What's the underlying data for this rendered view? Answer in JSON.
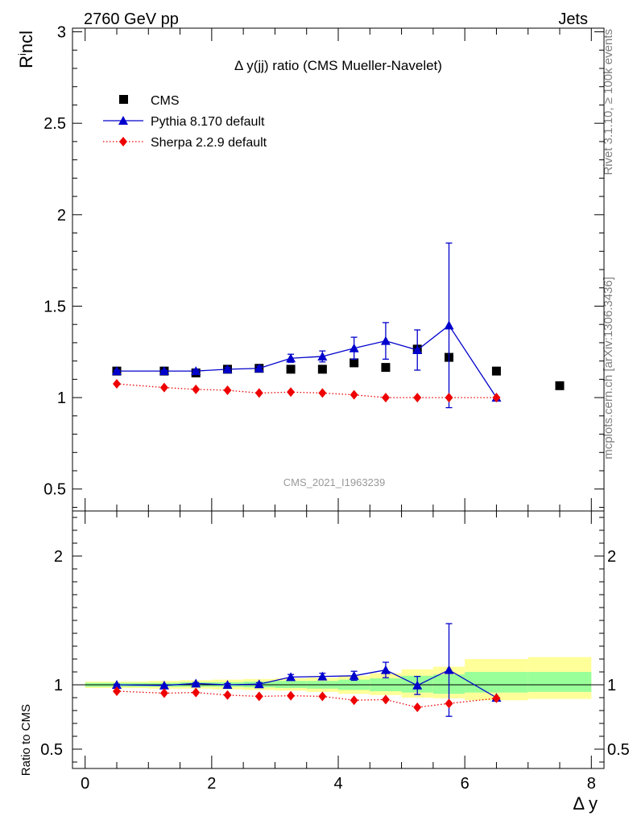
{
  "header": {
    "left": "2760 GeV pp",
    "right": "Jets",
    "side_top": "Rivet 3.1.10, ≥ 100k events",
    "side_bottom": "mcplots.cern.ch [arXiv:1306.3436]"
  },
  "chart_data": [
    {
      "type": "scatter",
      "panel": "main",
      "title": "Δ y(jj) ratio (CMS Mueller-Navelet)",
      "watermark": "CMS_2021_I1963239",
      "ylabel": "R^incl",
      "xlim": [
        -0.2,
        8.2
      ],
      "ylim": [
        0.38,
        3.02
      ],
      "y_ticks": [
        0.5,
        1,
        1.5,
        2,
        2.5,
        3
      ],
      "y_tick_labels": [
        "0.5",
        "1",
        "1.5",
        "2",
        "2.5",
        "3"
      ],
      "legend_position": "top-left",
      "series": [
        {
          "name": "CMS",
          "color": "#000000",
          "marker": "square",
          "x": [
            0.5,
            1.25,
            1.75,
            2.25,
            2.75,
            3.25,
            3.75,
            4.25,
            4.75,
            5.25,
            5.75,
            6.5,
            7.5
          ],
          "y": [
            1.145,
            1.145,
            1.135,
            1.155,
            1.16,
            1.155,
            1.155,
            1.19,
            1.165,
            1.265,
            1.22,
            1.145,
            1.065
          ]
        },
        {
          "name": "Pythia 8.170 default",
          "color": "#0000cc",
          "marker": "triangle",
          "line": "solid",
          "x": [
            0.5,
            1.25,
            1.75,
            2.25,
            2.75,
            3.25,
            3.75,
            4.25,
            4.75,
            5.25,
            5.75,
            6.5
          ],
          "y": [
            1.145,
            1.145,
            1.145,
            1.155,
            1.16,
            1.215,
            1.225,
            1.27,
            1.31,
            1.26,
            1.395,
            1.0
          ],
          "err": [
            0.005,
            0.005,
            0.008,
            0.01,
            0.012,
            0.022,
            0.03,
            0.06,
            0.1,
            0.11,
            0.45,
            0.0
          ]
        },
        {
          "name": "Sherpa 2.2.9 default",
          "color": "#ee0000",
          "marker": "diamond",
          "line": "dotted",
          "x": [
            0.5,
            1.25,
            1.75,
            2.25,
            2.75,
            3.25,
            3.75,
            4.25,
            4.75,
            5.25,
            5.75,
            6.5
          ],
          "y": [
            1.075,
            1.055,
            1.045,
            1.04,
            1.025,
            1.03,
            1.025,
            1.015,
            1.0,
            1.0,
            1.0,
            1.0
          ]
        }
      ]
    },
    {
      "type": "scatter",
      "panel": "ratio",
      "ylabel": "Ratio to CMS",
      "xlabel": "Δ y",
      "xlim": [
        -0.2,
        8.2
      ],
      "ylim": [
        0.35,
        2.35
      ],
      "x_ticks": [
        0,
        2,
        4,
        6,
        8
      ],
      "x_tick_labels": [
        "0",
        "2",
        "4",
        "6",
        "8"
      ],
      "y_ticks": [
        0.5,
        1,
        2
      ],
      "y_tick_labels": [
        "0.5",
        "1",
        "2"
      ],
      "reference_line": 1,
      "bands": {
        "edges": [
          0,
          1,
          1.5,
          2,
          2.5,
          3,
          3.5,
          4,
          4.5,
          5,
          5.5,
          6,
          7,
          8
        ],
        "inner": [
          [
            0.985,
            1.015
          ],
          [
            0.985,
            1.015
          ],
          [
            0.985,
            1.02
          ],
          [
            0.985,
            1.02
          ],
          [
            0.98,
            1.025
          ],
          [
            0.975,
            1.03
          ],
          [
            0.97,
            1.03
          ],
          [
            0.96,
            1.04
          ],
          [
            0.95,
            1.05
          ],
          [
            0.94,
            1.07
          ],
          [
            0.93,
            1.08
          ],
          [
            0.94,
            1.1
          ],
          [
            0.945,
            1.1
          ]
        ],
        "outer": [
          [
            0.975,
            1.025
          ],
          [
            0.97,
            1.03
          ],
          [
            0.97,
            1.035
          ],
          [
            0.965,
            1.04
          ],
          [
            0.96,
            1.045
          ],
          [
            0.955,
            1.05
          ],
          [
            0.945,
            1.055
          ],
          [
            0.93,
            1.07
          ],
          [
            0.92,
            1.09
          ],
          [
            0.9,
            1.12
          ],
          [
            0.895,
            1.14
          ],
          [
            0.88,
            1.2
          ],
          [
            0.89,
            1.215
          ]
        ]
      },
      "series": [
        {
          "name": "Pythia 8.170 default",
          "color": "#0000cc",
          "marker": "triangle",
          "line": "solid",
          "x": [
            0.5,
            1.25,
            1.75,
            2.25,
            2.75,
            3.25,
            3.75,
            4.25,
            4.75,
            5.25,
            5.75,
            6.5
          ],
          "y": [
            1.0,
            0.995,
            1.01,
            1.0,
            1.005,
            1.06,
            1.065,
            1.07,
            1.115,
            0.995,
            1.115,
            0.9
          ],
          "err": [
            0.005,
            0.005,
            0.008,
            0.01,
            0.012,
            0.02,
            0.025,
            0.035,
            0.06,
            0.07,
            0.36,
            0.0
          ]
        },
        {
          "name": "Sherpa 2.2.9 default",
          "color": "#ee0000",
          "marker": "diamond",
          "line": "dotted",
          "x": [
            0.5,
            1.25,
            1.75,
            2.25,
            2.75,
            3.25,
            3.75,
            4.25,
            4.75,
            5.25,
            5.75,
            6.5
          ],
          "y": [
            0.95,
            0.935,
            0.94,
            0.92,
            0.91,
            0.915,
            0.91,
            0.88,
            0.885,
            0.825,
            0.855,
            0.895
          ]
        }
      ]
    }
  ]
}
